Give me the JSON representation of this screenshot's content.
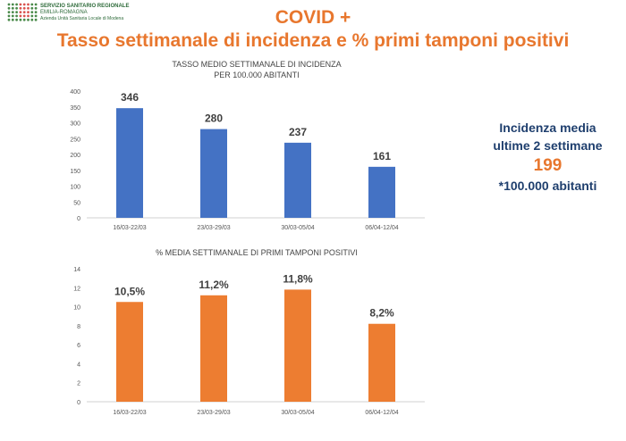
{
  "header": {
    "org_line1": "SERVIZIO SANITARIO REGIONALE",
    "org_line2": "EMILIA-ROMAGNA",
    "org_line3": "Azienda Unità Sanitaria Locale di Modena",
    "title_line1": "COVID +",
    "title_line2": "Tasso settimanale di incidenza e % primi tamponi positivi"
  },
  "side_box": {
    "line1": "Incidenza media",
    "line2": "ultime 2 settimane",
    "value": "199",
    "line4": "*100.000 abitanti"
  },
  "colors": {
    "incidence": "#4472c4",
    "positivity": "#ed7d31",
    "title": "#e8772e",
    "side_text": "#1f3f6e"
  },
  "chart_data": [
    {
      "type": "bar",
      "title": "TASSO MEDIO SETTIMANALE DI INCIDENZA PER 100.000 ABITANTI",
      "title_lines": [
        "TASSO MEDIO SETTIMANALE DI INCIDENZA",
        "PER 100.000 ABITANTI"
      ],
      "categories": [
        "16/03-22/03",
        "23/03-29/03",
        "30/03-05/04",
        "06/04-12/04"
      ],
      "values": [
        346,
        280,
        237,
        161
      ],
      "labels": [
        "346",
        "280",
        "237",
        "161"
      ],
      "ylim": [
        0,
        400
      ],
      "yticks": [
        0,
        50,
        100,
        150,
        200,
        250,
        300,
        350,
        400
      ],
      "grid": false
    },
    {
      "type": "bar",
      "title": "% MEDIA SETTIMANALE DI PRIMI TAMPONI POSITIVI",
      "title_lines": [
        "% MEDIA SETTIMANALE DI PRIMI TAMPONI POSITIVI"
      ],
      "categories": [
        "16/03-22/03",
        "23/03-29/03",
        "30/03-05/04",
        "06/04-12/04"
      ],
      "values": [
        10.5,
        11.2,
        11.8,
        8.2
      ],
      "labels": [
        "10,5%",
        "11,2%",
        "11,8%",
        "8,2%"
      ],
      "ylim": [
        0,
        14
      ],
      "yticks": [
        0,
        2,
        4,
        6,
        8,
        10,
        12,
        14
      ],
      "grid": false
    }
  ]
}
